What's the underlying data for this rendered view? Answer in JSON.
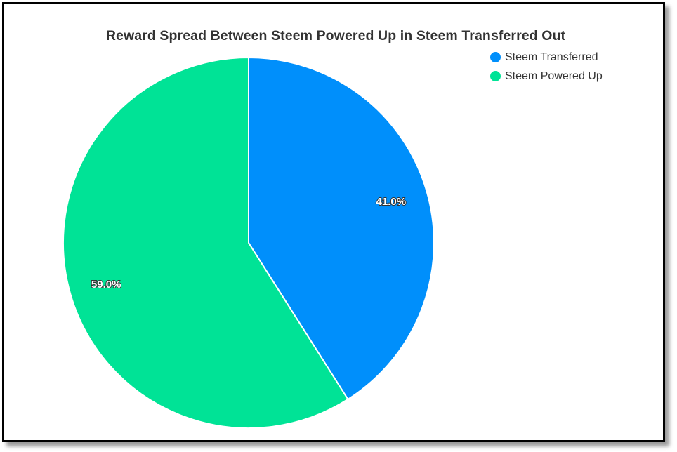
{
  "chart_data": {
    "type": "pie",
    "title": "Reward Spread Between Steem Powered Up in Steem Transferred Out",
    "legend_position": "top-right",
    "series": [
      {
        "name": "Steem Transferred",
        "value": 41.0,
        "label": "41.0%",
        "color": "#008FFB"
      },
      {
        "name": "Steem Powered Up",
        "value": 59.0,
        "label": "59.0%",
        "color": "#00E396"
      }
    ]
  }
}
